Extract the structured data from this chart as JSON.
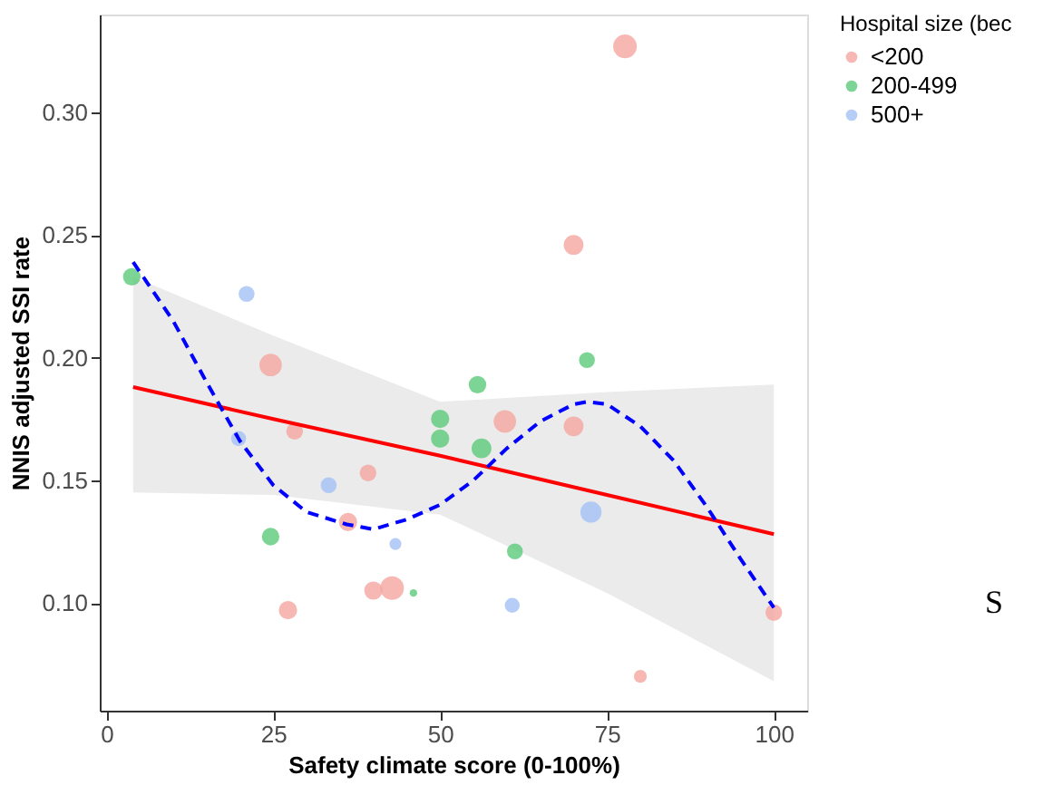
{
  "chart_data": {
    "type": "scatter",
    "xlabel": "Safety climate score (0-100%)",
    "ylabel": "NNIS adjusted SSI rate",
    "legend_title": "Hospital size (bec",
    "legend": "right",
    "grid": false,
    "marker": "circle",
    "xlim": [
      -1,
      105
    ],
    "ylim": [
      0.056,
      0.34
    ],
    "xticks": [
      0,
      25,
      50,
      75,
      100
    ],
    "yticks": [
      {
        "value": 0.1,
        "label": "0.10"
      },
      {
        "value": 0.15,
        "label": "0.15"
      },
      {
        "value": 0.2,
        "label": "0.20"
      },
      {
        "value": 0.25,
        "label": "0.25"
      },
      {
        "value": 0.3,
        "label": "0.30"
      }
    ],
    "annotations": [
      "S"
    ],
    "series": [
      {
        "name": "<200",
        "color": "#f5a5a0",
        "x": [
          77.7,
          70,
          24.6,
          28.2,
          39.2,
          36.2,
          40,
          42.8,
          27.2,
          59.7,
          70,
          100,
          80
        ],
        "values": [
          0.327,
          0.246,
          0.197,
          0.17,
          0.153,
          0.133,
          0.105,
          0.106,
          0.097,
          0.174,
          0.172,
          0.096,
          0.07
        ],
        "sizes": [
          1,
          0.7,
          0.9,
          0.5,
          0.5,
          0.6,
          0.6,
          1,
          0.6,
          0.9,
          0.7,
          0.5,
          0.3
        ]
      },
      {
        "name": "200-499",
        "color": "#5ccb7a",
        "x": [
          3.8,
          24.6,
          50,
          50,
          55.6,
          56.2,
          46,
          72,
          61.2
        ],
        "values": [
          0.233,
          0.127,
          0.175,
          0.167,
          0.189,
          0.163,
          0.104,
          0.199,
          0.121
        ],
        "sizes": [
          0.55,
          0.55,
          0.6,
          0.6,
          0.55,
          0.7,
          0.1,
          0.45,
          0.45
        ]
      },
      {
        "name": "500+",
        "color": "#a3c1f5",
        "x": [
          21,
          19.8,
          33.3,
          43.3,
          60.8,
          72.6
        ],
        "values": [
          0.226,
          0.167,
          0.148,
          0.124,
          0.099,
          0.137
        ],
        "sizes": [
          0.45,
          0.4,
          0.45,
          0.25,
          0.4,
          0.8
        ]
      },
      {
        "type": "line",
        "color": "#ff0000",
        "line_style": "solid",
        "marker": "none",
        "x": [
          4,
          25,
          50,
          75,
          100
        ],
        "values": [
          0.188,
          0.175,
          0.16,
          0.144,
          0.128
        ],
        "lower": [
          0.145,
          0.144,
          0.136,
          0.104,
          0.068
        ],
        "upper": [
          0.233,
          0.209,
          0.182,
          0.186,
          0.189
        ]
      },
      {
        "type": "line",
        "color": "#0000ff",
        "line_style": "dashed",
        "marker": "none",
        "x": [
          4,
          10,
          15,
          20,
          25,
          30,
          36,
          40,
          45,
          50,
          55,
          60,
          65,
          70,
          72,
          75,
          80,
          85,
          90,
          95,
          100
        ],
        "values": [
          0.239,
          0.215,
          0.19,
          0.166,
          0.148,
          0.137,
          0.132,
          0.13,
          0.134,
          0.14,
          0.15,
          0.163,
          0.174,
          0.181,
          0.182,
          0.181,
          0.172,
          0.158,
          0.139,
          0.118,
          0.098
        ]
      }
    ]
  }
}
